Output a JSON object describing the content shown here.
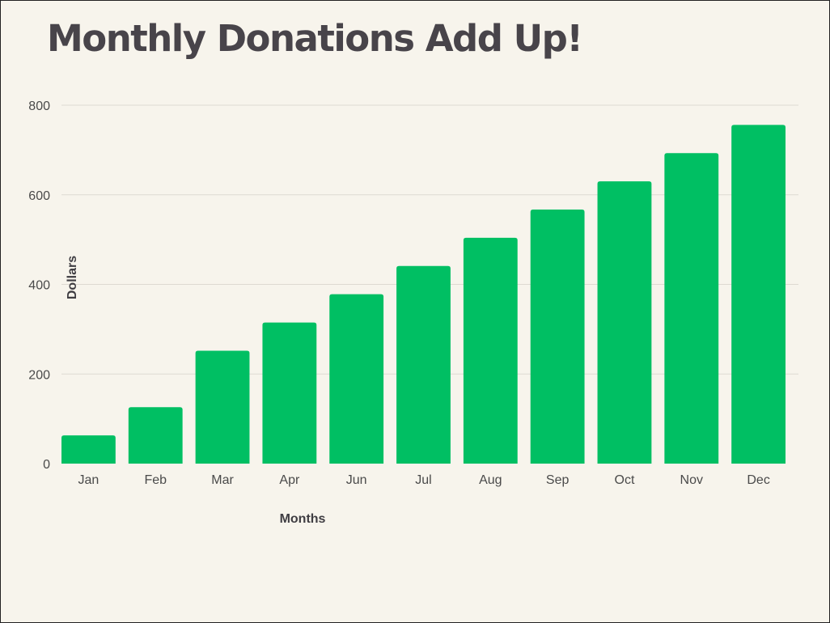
{
  "chart_data": {
    "type": "bar",
    "title": "Monthly Donations Add Up!",
    "xlabel": "Months",
    "ylabel": "Dollars",
    "categories": [
      "Jan",
      "Feb",
      "Mar",
      "Apr",
      "Jun",
      "Jul",
      "Aug",
      "Sep",
      "Oct",
      "Nov",
      "Dec"
    ],
    "values": [
      63,
      126,
      252,
      315,
      378,
      441,
      504,
      567,
      630,
      693,
      756
    ],
    "ylim": [
      0,
      800
    ],
    "yticks": [
      0,
      200,
      400,
      600,
      800
    ],
    "grid": true,
    "legend": "none",
    "bar_color": "#00bf63",
    "background_color": "#f7f4ec",
    "title_color": "#48444a"
  }
}
